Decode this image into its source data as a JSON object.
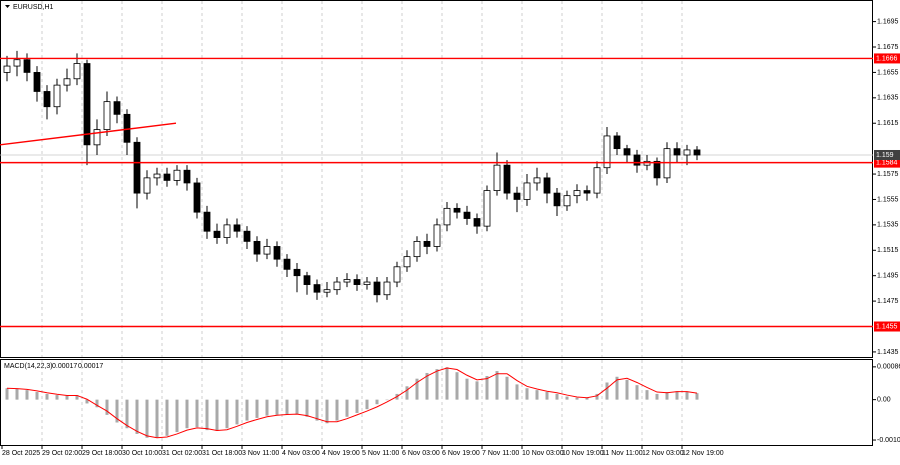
{
  "chart_data": {
    "type": "candlestick",
    "symbol": "EURUSD,H1",
    "categories": [
      "28 Oct 2025",
      null,
      null,
      null,
      "29 Oct 02:00",
      null,
      null,
      null,
      "29 Oct 18:00",
      null,
      null,
      null,
      "30 Oct 10:00",
      null,
      null,
      null,
      "31 Oct 02:00",
      null,
      null,
      null,
      "31 Oct 18:00",
      null,
      null,
      null,
      "3 Nov 11:00",
      null,
      null,
      null,
      "4 Nov 03:00",
      null,
      null,
      null,
      "4 Nov 19:00",
      null,
      null,
      null,
      "5 Nov 11:00",
      null,
      null,
      null,
      "6 Nov 03:00",
      null,
      null,
      null,
      "6 Nov 19:00",
      null,
      null,
      null,
      "7 Nov 11:00",
      null,
      null,
      null,
      "10 Nov 03:00",
      null,
      null,
      null,
      "10 Nov 19:00",
      null,
      null,
      null,
      "11 Nov 11:00",
      null,
      null,
      null,
      "12 Nov 03:00",
      null,
      null,
      null,
      "12 Nov 19:00",
      null
    ],
    "open": [
      1.1655,
      1.166,
      1.1665,
      1.1655,
      1.164,
      1.1628,
      1.1645,
      1.165,
      1.1662,
      1.1598,
      1.161,
      1.1632,
      1.1622,
      1.16,
      1.156,
      1.1572,
      1.1575,
      1.157,
      1.1578,
      1.1568,
      1.1545,
      1.153,
      1.1525,
      1.1535,
      1.153,
      1.1522,
      1.1512,
      1.1518,
      1.1508,
      1.15,
      1.1495,
      1.1488,
      1.1482,
      1.1484,
      1.149,
      1.1492,
      1.1488,
      1.149,
      1.148,
      1.149,
      1.1502,
      1.151,
      1.1522,
      1.1518,
      1.1535,
      1.1548,
      1.1545,
      1.154,
      1.1534,
      1.1562,
      1.1582,
      1.156,
      1.1555,
      1.1568,
      1.1572,
      1.156,
      1.155,
      1.1558,
      1.1562,
      1.156,
      1.158,
      1.1605,
      1.1595,
      1.159,
      1.1582,
      1.1585,
      1.1572,
      1.1595,
      1.159,
      1.1594
    ],
    "high": [
      1.1668,
      1.1672,
      1.167,
      1.166,
      1.1645,
      1.165,
      1.1658,
      1.167,
      1.1665,
      1.1618,
      1.164,
      1.1636,
      1.1626,
      1.1604,
      1.1578,
      1.158,
      1.158,
      1.1582,
      1.1582,
      1.1572,
      1.155,
      1.1536,
      1.154,
      1.154,
      1.1534,
      1.1526,
      1.1524,
      1.1522,
      1.1512,
      1.1505,
      1.1498,
      1.1492,
      1.149,
      1.1494,
      1.1497,
      1.1496,
      1.1494,
      1.1494,
      1.1494,
      1.1506,
      1.1515,
      1.1526,
      1.1528,
      1.154,
      1.1553,
      1.1552,
      1.155,
      1.1544,
      1.1566,
      1.1592,
      1.1586,
      1.1565,
      1.1575,
      1.158,
      1.1576,
      1.1564,
      1.1562,
      1.1567,
      1.1566,
      1.1585,
      1.1612,
      1.1608,
      1.1598,
      1.1594,
      1.159,
      1.1588,
      1.16,
      1.16,
      1.1598,
      1.1597
    ],
    "low": [
      1.1648,
      1.1652,
      1.1648,
      1.1632,
      1.1618,
      1.1622,
      1.164,
      1.1645,
      1.1582,
      1.159,
      1.1605,
      1.1615,
      1.159,
      1.1548,
      1.1555,
      1.1566,
      1.1565,
      1.1566,
      1.1562,
      1.154,
      1.1524,
      1.152,
      1.152,
      1.1525,
      1.1516,
      1.1506,
      1.1508,
      1.1502,
      1.1494,
      1.1482,
      1.148,
      1.1476,
      1.1478,
      1.148,
      1.1486,
      1.1483,
      1.1484,
      1.1474,
      1.1476,
      1.1486,
      1.1498,
      1.1506,
      1.1512,
      1.1514,
      1.153,
      1.154,
      1.1535,
      1.1528,
      1.153,
      1.1558,
      1.1555,
      1.1545,
      1.155,
      1.1562,
      1.1552,
      1.1542,
      1.1546,
      1.1552,
      1.1554,
      1.1556,
      1.1575,
      1.159,
      1.1584,
      1.1576,
      1.1578,
      1.1566,
      1.1568,
      1.1584,
      1.1582,
      1.1586
    ],
    "close": [
      1.166,
      1.1665,
      1.1655,
      1.164,
      1.1628,
      1.1645,
      1.165,
      1.1662,
      1.1598,
      1.161,
      1.1632,
      1.1622,
      1.16,
      1.156,
      1.1572,
      1.1575,
      1.157,
      1.1578,
      1.1568,
      1.1545,
      1.153,
      1.1525,
      1.1535,
      1.153,
      1.1522,
      1.1512,
      1.1518,
      1.1508,
      1.15,
      1.1495,
      1.1488,
      1.1482,
      1.1484,
      1.149,
      1.1492,
      1.1488,
      1.149,
      1.148,
      1.149,
      1.1502,
      1.151,
      1.1522,
      1.1518,
      1.1535,
      1.1548,
      1.1545,
      1.154,
      1.1534,
      1.1562,
      1.1582,
      1.156,
      1.1555,
      1.1568,
      1.1572,
      1.156,
      1.155,
      1.1558,
      1.1562,
      1.156,
      1.158,
      1.1605,
      1.1595,
      1.159,
      1.1582,
      1.1585,
      1.1572,
      1.1595,
      1.159,
      1.1594,
      1.159
    ],
    "ylim": [
      1.1431,
      1.1712
    ],
    "yticks": [
      1.1695,
      1.1675,
      1.1655,
      1.1635,
      1.1615,
      1.1575,
      1.1555,
      1.1535,
      1.1515,
      1.1495,
      1.1475,
      1.1435
    ],
    "levels": [
      1.1666,
      1.1584,
      1.1455
    ],
    "level_color": "#ff0000",
    "trendline": [
      1.1598,
      1.1615
    ],
    "current_price": 1.159,
    "macd": {
      "name": "MACD(14,22,3)",
      "label_values": [
        0.00017,
        0.00017
      ],
      "histogram": [
        0.0003,
        0.00028,
        0.00025,
        0.0002,
        0.00015,
        0.00012,
        0.0001,
        0.00012,
        -0.0001,
        -0.0002,
        -0.0004,
        -0.0006,
        -0.00075,
        -0.0009,
        -0.001,
        -0.001,
        -0.00095,
        -0.00085,
        -0.00075,
        -0.00072,
        -0.0008,
        -0.00082,
        -0.00075,
        -0.00065,
        -0.00055,
        -0.00048,
        -0.00042,
        -0.0004,
        -0.00038,
        -0.00038,
        -0.00045,
        -0.00055,
        -0.00062,
        -0.00055,
        -0.00045,
        -0.00035,
        -0.00025,
        -0.00012,
        0,
        0.00015,
        0.00035,
        0.00055,
        0.0007,
        0.0008,
        0.00085,
        0.00072,
        0.00055,
        0.00048,
        0.00062,
        0.00075,
        0.0006,
        0.0004,
        0.0003,
        0.00025,
        0.0002,
        0.00015,
        8e-05,
        5e-05,
        5e-05,
        0.00015,
        0.00045,
        0.0006,
        0.00052,
        0.00038,
        0.00025,
        0.00015,
        0.0002,
        0.00022,
        0.0002,
        0.00017
      ],
      "signal": [
        0.0003,
        0.00029,
        0.00027,
        0.00023,
        0.00018,
        0.00014,
        0.00011,
        0.00011,
        1e-05,
        -0.00015,
        -0.0003,
        -0.0005,
        -0.00068,
        -0.00083,
        -0.00095,
        -0.001,
        -0.00098,
        -0.0009,
        -0.0008,
        -0.00074,
        -0.00076,
        -0.00081,
        -0.00079,
        -0.0007,
        -0.0006,
        -0.00052,
        -0.00045,
        -0.00041,
        -0.00039,
        -0.00038,
        -0.00042,
        -0.0005,
        -0.00058,
        -0.00058,
        -0.0005,
        -0.0004,
        -0.0003,
        -0.00019,
        -6e-05,
        8e-05,
        0.00025,
        0.00045,
        0.00062,
        0.00075,
        0.00083,
        0.00079,
        0.00064,
        0.00052,
        0.00055,
        0.00068,
        0.00068,
        0.0005,
        0.00035,
        0.00028,
        0.00022,
        0.00018,
        0.00012,
        7e-05,
        5e-05,
        0.0001,
        0.0003,
        0.00052,
        0.00056,
        0.00045,
        0.00032,
        0.0002,
        0.00018,
        0.00021,
        0.00021,
        0.00017
      ],
      "hist_color": "#a9a9a9",
      "signal_color": "#ff0000",
      "ylim": [
        -0.00119,
        0.00104
      ],
      "yticks": [
        0.00086,
        {
          "value": 0,
          "label": "0.00"
        },
        -0.00106
      ]
    }
  }
}
